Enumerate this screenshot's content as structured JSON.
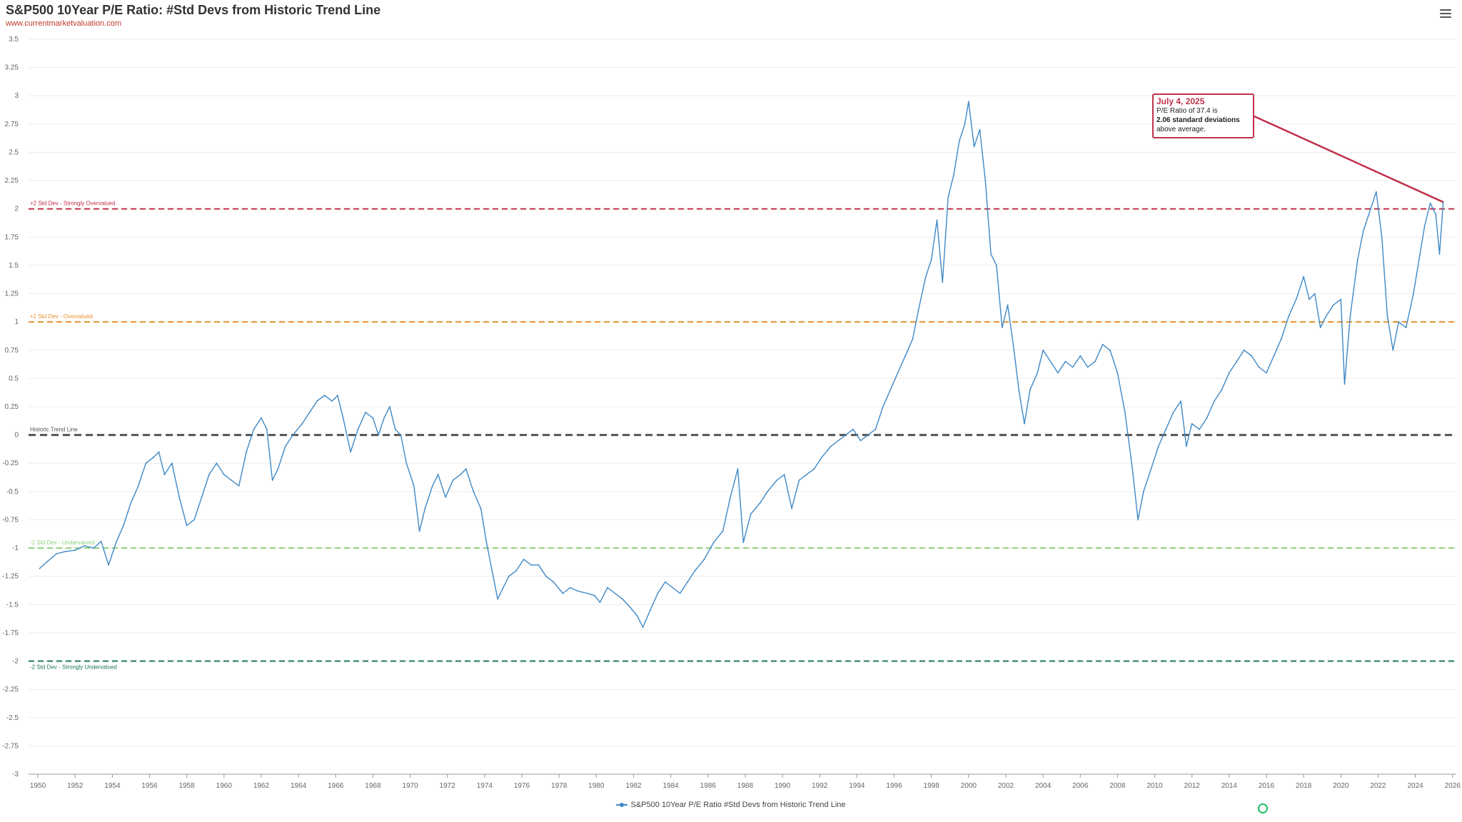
{
  "title": "S&P500 10Year P/E Ratio: #Std Devs from Historic Trend Line",
  "subtitle": "www.currentmarketvaluation.com",
  "menu_icon": "hamburger-menu-icon",
  "legend": {
    "label": "S&P500 10Year P/E Ratio #Std Devs from Historic Trend Line",
    "color": "#3f88c5"
  },
  "callout": {
    "date": "July 4, 2025",
    "line1": "P/E Ratio of 37.4 is",
    "line2": "2.06 standard deviations",
    "line3": "above average.",
    "color": "#c0314a"
  },
  "chart_data": {
    "type": "line",
    "title": "S&P500 10Year P/E Ratio: #Std Devs from Historic Trend Line",
    "xlabel": "",
    "ylabel": "",
    "xlim": [
      1949.5,
      2026.2
    ],
    "ylim": [
      -3,
      3.5
    ],
    "x_ticks": [
      "1950",
      "1952",
      "1954",
      "1956",
      "1958",
      "1960",
      "1962",
      "1964",
      "1966",
      "1968",
      "1970",
      "1972",
      "1974",
      "1976",
      "1978",
      "1980",
      "1982",
      "1984",
      "1986",
      "1988",
      "1990",
      "1992",
      "1994",
      "1996",
      "1998",
      "2000",
      "2002",
      "2004",
      "2006",
      "2008",
      "2010",
      "2012",
      "2014",
      "2016",
      "2018",
      "2020",
      "2022",
      "2024",
      "2026"
    ],
    "y_ticks": [
      "3.5",
      "3.25",
      "3",
      "2.75",
      "2.5",
      "2.25",
      "2",
      "1.75",
      "1.5",
      "1.25",
      "1",
      "0.75",
      "0.5",
      "0.25",
      "0",
      "-0.25",
      "-0.5",
      "-0.75",
      "-1",
      "-1.25",
      "-1.5",
      "-1.75",
      "-2",
      "-2.25",
      "-2.5",
      "-2.75",
      "-3"
    ],
    "grid": true,
    "legend_position": "bottom-center",
    "reference_lines": [
      {
        "value": 2,
        "label": "+2 Std Dev - Strongly Overvalued",
        "color": "#c0314a"
      },
      {
        "value": 1,
        "label": "+1 Std Dev - Overvalued",
        "color": "#e8912d"
      },
      {
        "value": 0,
        "label": "Historic Trend Line",
        "color": "#555555"
      },
      {
        "value": -1,
        "label": "-1 Std Dev - Undervalued",
        "color": "#8fd17a"
      },
      {
        "value": -2,
        "label": "-2 Std Dev - Strongly Undervalued",
        "color": "#1f7a52"
      }
    ],
    "series": [
      {
        "name": "S&P500 10Year P/E Ratio #Std Devs from Historic Trend Line",
        "color": "#3f88c5",
        "points": [
          [
            1950.1,
            -1.18
          ],
          [
            1950.5,
            -1.12
          ],
          [
            1951.0,
            -1.05
          ],
          [
            1951.5,
            -1.03
          ],
          [
            1952.0,
            -1.02
          ],
          [
            1952.5,
            -0.98
          ],
          [
            1953.0,
            -1.0
          ],
          [
            1953.4,
            -0.94
          ],
          [
            1953.8,
            -1.15
          ],
          [
            1954.2,
            -0.95
          ],
          [
            1954.6,
            -0.8
          ],
          [
            1955.0,
            -0.6
          ],
          [
            1955.4,
            -0.45
          ],
          [
            1955.8,
            -0.25
          ],
          [
            1956.2,
            -0.2
          ],
          [
            1956.5,
            -0.15
          ],
          [
            1956.8,
            -0.35
          ],
          [
            1957.2,
            -0.25
          ],
          [
            1957.6,
            -0.55
          ],
          [
            1958.0,
            -0.8
          ],
          [
            1958.4,
            -0.75
          ],
          [
            1958.8,
            -0.55
          ],
          [
            1959.2,
            -0.35
          ],
          [
            1959.6,
            -0.25
          ],
          [
            1960.0,
            -0.35
          ],
          [
            1960.4,
            -0.4
          ],
          [
            1960.8,
            -0.45
          ],
          [
            1961.2,
            -0.15
          ],
          [
            1961.6,
            0.05
          ],
          [
            1962.0,
            0.15
          ],
          [
            1962.3,
            0.05
          ],
          [
            1962.6,
            -0.4
          ],
          [
            1962.9,
            -0.3
          ],
          [
            1963.3,
            -0.1
          ],
          [
            1963.7,
            0.0
          ],
          [
            1964.2,
            0.1
          ],
          [
            1964.6,
            0.2
          ],
          [
            1965.0,
            0.3
          ],
          [
            1965.4,
            0.35
          ],
          [
            1965.8,
            0.3
          ],
          [
            1966.1,
            0.35
          ],
          [
            1966.4,
            0.15
          ],
          [
            1966.8,
            -0.15
          ],
          [
            1967.2,
            0.05
          ],
          [
            1967.6,
            0.2
          ],
          [
            1968.0,
            0.15
          ],
          [
            1968.3,
            0.0
          ],
          [
            1968.6,
            0.15
          ],
          [
            1968.9,
            0.25
          ],
          [
            1969.2,
            0.05
          ],
          [
            1969.5,
            0.0
          ],
          [
            1969.8,
            -0.25
          ],
          [
            1970.2,
            -0.45
          ],
          [
            1970.5,
            -0.85
          ],
          [
            1970.8,
            -0.65
          ],
          [
            1971.2,
            -0.45
          ],
          [
            1971.5,
            -0.35
          ],
          [
            1971.9,
            -0.55
          ],
          [
            1972.3,
            -0.4
          ],
          [
            1972.7,
            -0.35
          ],
          [
            1973.0,
            -0.3
          ],
          [
            1973.4,
            -0.5
          ],
          [
            1973.8,
            -0.65
          ],
          [
            1974.1,
            -0.95
          ],
          [
            1974.4,
            -1.2
          ],
          [
            1974.7,
            -1.45
          ],
          [
            1975.0,
            -1.35
          ],
          [
            1975.3,
            -1.25
          ],
          [
            1975.7,
            -1.2
          ],
          [
            1976.1,
            -1.1
          ],
          [
            1976.5,
            -1.15
          ],
          [
            1976.9,
            -1.15
          ],
          [
            1977.3,
            -1.25
          ],
          [
            1977.7,
            -1.3
          ],
          [
            1978.2,
            -1.4
          ],
          [
            1978.6,
            -1.35
          ],
          [
            1979.0,
            -1.38
          ],
          [
            1979.5,
            -1.4
          ],
          [
            1979.9,
            -1.42
          ],
          [
            1980.2,
            -1.48
          ],
          [
            1980.6,
            -1.35
          ],
          [
            1981.0,
            -1.4
          ],
          [
            1981.4,
            -1.45
          ],
          [
            1981.8,
            -1.52
          ],
          [
            1982.2,
            -1.6
          ],
          [
            1982.5,
            -1.7
          ],
          [
            1982.9,
            -1.55
          ],
          [
            1983.3,
            -1.4
          ],
          [
            1983.7,
            -1.3
          ],
          [
            1984.1,
            -1.35
          ],
          [
            1984.5,
            -1.4
          ],
          [
            1984.9,
            -1.3
          ],
          [
            1985.3,
            -1.2
          ],
          [
            1985.8,
            -1.1
          ],
          [
            1986.3,
            -0.95
          ],
          [
            1986.8,
            -0.85
          ],
          [
            1987.2,
            -0.55
          ],
          [
            1987.6,
            -0.3
          ],
          [
            1987.9,
            -0.95
          ],
          [
            1988.3,
            -0.7
          ],
          [
            1988.8,
            -0.6
          ],
          [
            1989.2,
            -0.5
          ],
          [
            1989.7,
            -0.4
          ],
          [
            1990.1,
            -0.35
          ],
          [
            1990.5,
            -0.65
          ],
          [
            1990.9,
            -0.4
          ],
          [
            1991.3,
            -0.35
          ],
          [
            1991.7,
            -0.3
          ],
          [
            1992.1,
            -0.2
          ],
          [
            1992.6,
            -0.1
          ],
          [
            1993.0,
            -0.05
          ],
          [
            1993.4,
            0.0
          ],
          [
            1993.8,
            0.05
          ],
          [
            1994.2,
            -0.05
          ],
          [
            1994.6,
            0.0
          ],
          [
            1995.0,
            0.05
          ],
          [
            1995.4,
            0.25
          ],
          [
            1995.8,
            0.4
          ],
          [
            1996.2,
            0.55
          ],
          [
            1996.6,
            0.7
          ],
          [
            1997.0,
            0.85
          ],
          [
            1997.3,
            1.1
          ],
          [
            1997.7,
            1.4
          ],
          [
            1998.0,
            1.55
          ],
          [
            1998.3,
            1.9
          ],
          [
            1998.6,
            1.35
          ],
          [
            1998.9,
            2.1
          ],
          [
            1999.2,
            2.3
          ],
          [
            1999.5,
            2.6
          ],
          [
            1999.8,
            2.75
          ],
          [
            2000.0,
            2.95
          ],
          [
            2000.3,
            2.55
          ],
          [
            2000.6,
            2.7
          ],
          [
            2000.9,
            2.25
          ],
          [
            2001.2,
            1.6
          ],
          [
            2001.5,
            1.5
          ],
          [
            2001.8,
            0.95
          ],
          [
            2002.1,
            1.15
          ],
          [
            2002.4,
            0.8
          ],
          [
            2002.7,
            0.4
          ],
          [
            2003.0,
            0.1
          ],
          [
            2003.3,
            0.4
          ],
          [
            2003.7,
            0.55
          ],
          [
            2004.0,
            0.75
          ],
          [
            2004.4,
            0.65
          ],
          [
            2004.8,
            0.55
          ],
          [
            2005.2,
            0.65
          ],
          [
            2005.6,
            0.6
          ],
          [
            2006.0,
            0.7
          ],
          [
            2006.4,
            0.6
          ],
          [
            2006.8,
            0.65
          ],
          [
            2007.2,
            0.8
          ],
          [
            2007.6,
            0.75
          ],
          [
            2008.0,
            0.55
          ],
          [
            2008.4,
            0.2
          ],
          [
            2008.8,
            -0.3
          ],
          [
            2009.1,
            -0.75
          ],
          [
            2009.4,
            -0.5
          ],
          [
            2009.8,
            -0.3
          ],
          [
            2010.2,
            -0.1
          ],
          [
            2010.6,
            0.05
          ],
          [
            2011.0,
            0.2
          ],
          [
            2011.4,
            0.3
          ],
          [
            2011.7,
            -0.1
          ],
          [
            2012.0,
            0.1
          ],
          [
            2012.4,
            0.05
          ],
          [
            2012.8,
            0.15
          ],
          [
            2013.2,
            0.3
          ],
          [
            2013.6,
            0.4
          ],
          [
            2014.0,
            0.55
          ],
          [
            2014.4,
            0.65
          ],
          [
            2014.8,
            0.75
          ],
          [
            2015.2,
            0.7
          ],
          [
            2015.6,
            0.6
          ],
          [
            2016.0,
            0.55
          ],
          [
            2016.4,
            0.7
          ],
          [
            2016.8,
            0.85
          ],
          [
            2017.2,
            1.05
          ],
          [
            2017.6,
            1.2
          ],
          [
            2018.0,
            1.4
          ],
          [
            2018.3,
            1.2
          ],
          [
            2018.6,
            1.25
          ],
          [
            2018.9,
            0.95
          ],
          [
            2019.2,
            1.05
          ],
          [
            2019.6,
            1.15
          ],
          [
            2020.0,
            1.2
          ],
          [
            2020.2,
            0.45
          ],
          [
            2020.5,
            1.05
          ],
          [
            2020.9,
            1.55
          ],
          [
            2021.2,
            1.8
          ],
          [
            2021.5,
            1.95
          ],
          [
            2021.9,
            2.15
          ],
          [
            2022.2,
            1.75
          ],
          [
            2022.5,
            1.05
          ],
          [
            2022.8,
            0.75
          ],
          [
            2023.1,
            1.0
          ],
          [
            2023.5,
            0.95
          ],
          [
            2023.9,
            1.25
          ],
          [
            2024.2,
            1.55
          ],
          [
            2024.5,
            1.85
          ],
          [
            2024.8,
            2.05
          ],
          [
            2025.1,
            1.95
          ],
          [
            2025.3,
            1.6
          ],
          [
            2025.5,
            2.06
          ]
        ]
      }
    ]
  }
}
